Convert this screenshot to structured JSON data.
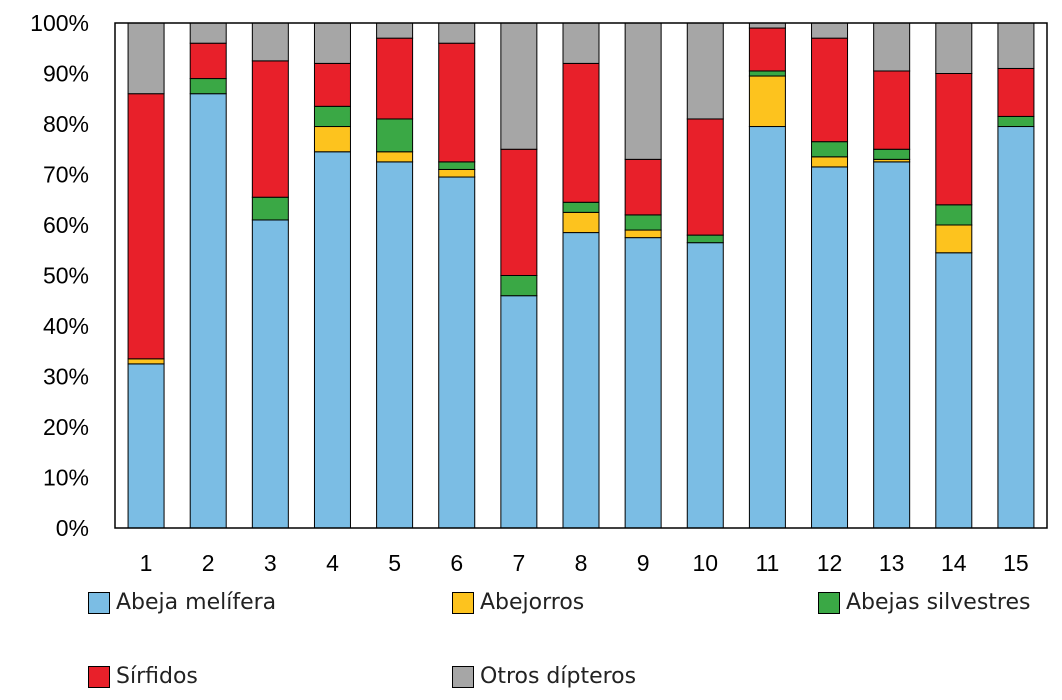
{
  "chart_data": {
    "type": "bar",
    "stacked": true,
    "categories": [
      "1",
      "2",
      "3",
      "4",
      "5",
      "6",
      "7",
      "8",
      "9",
      "10",
      "11",
      "12",
      "13",
      "14",
      "15"
    ],
    "yticks": [
      "0%",
      "10%",
      "20%",
      "30%",
      "40%",
      "50%",
      "60%",
      "70%",
      "80%",
      "90%",
      "100%"
    ],
    "ylim": [
      0,
      100
    ],
    "grid": false,
    "legend_placement": "bottom",
    "series": [
      {
        "name": "Abeja melífera",
        "color": "#7bbde4",
        "values": [
          32.5,
          86,
          61,
          74.5,
          72.5,
          69.5,
          46,
          58.5,
          57.5,
          56.5,
          79.5,
          71.5,
          72.5,
          54.5,
          79.5
        ]
      },
      {
        "name": "Abejorros",
        "color": "#fdc31e",
        "values": [
          1,
          0,
          0,
          5,
          2,
          1.5,
          0,
          4,
          1.5,
          0,
          10,
          2,
          0.5,
          5.5,
          0
        ]
      },
      {
        "name": "Abejas silvestres",
        "color": "#3aa845",
        "values": [
          0,
          3,
          4.5,
          4,
          6.5,
          1.5,
          4,
          2,
          3,
          1.5,
          1,
          3,
          2,
          4,
          2
        ]
      },
      {
        "name": "Sírfidos",
        "color": "#e8202a",
        "values": [
          52.5,
          7,
          27,
          8.5,
          16,
          23.5,
          25,
          27.5,
          11,
          23,
          8.5,
          20.5,
          15.5,
          26,
          9.5
        ]
      },
      {
        "name": "Otros dípteros",
        "color": "#a6a6a6",
        "values": [
          14,
          4,
          7.5,
          8,
          3,
          4,
          25,
          8,
          27,
          19,
          1,
          3,
          9.5,
          10,
          9
        ]
      }
    ]
  }
}
